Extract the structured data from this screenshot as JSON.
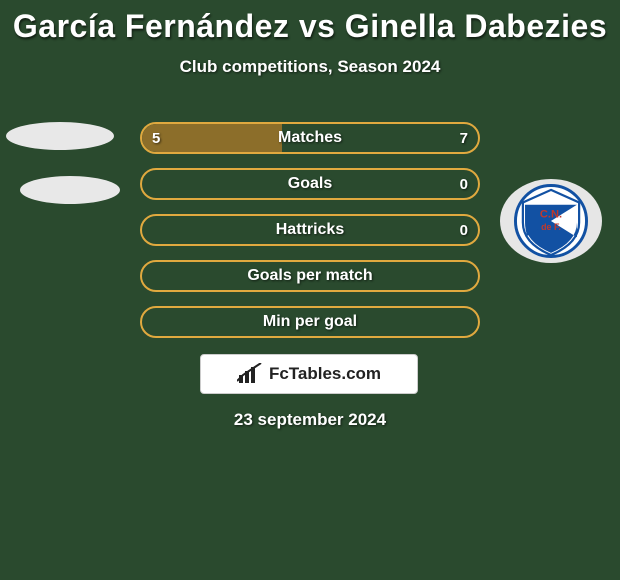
{
  "background_color": "#2a4a2e",
  "title": "García Fernández vs Ginella Dabezies",
  "title_fontsize": 32,
  "subtitle": "Club competitions, Season 2024",
  "subtitle_fontsize": 17,
  "bar_colors": {
    "border": "#e0a93f",
    "left_fill": "#8c6e2a",
    "track_fill": "transparent"
  },
  "rows": [
    {
      "label": "Matches",
      "left": "5",
      "right": "7",
      "left_pct": 41.7,
      "show_vals": true
    },
    {
      "label": "Goals",
      "left": "",
      "right": "0",
      "left_pct": 0,
      "show_vals": true
    },
    {
      "label": "Hattricks",
      "left": "",
      "right": "0",
      "left_pct": 0,
      "show_vals": true
    },
    {
      "label": "Goals per match",
      "left": "",
      "right": "",
      "left_pct": 0,
      "show_vals": false
    },
    {
      "label": "Min per goal",
      "left": "",
      "right": "",
      "left_pct": 0,
      "show_vals": false
    }
  ],
  "logo_text": "FcTables.com",
  "date_text": "23 september 2024",
  "oval_color": "#e8e8e8",
  "badge": {
    "outer_bg": "#e6e6e6",
    "shield_blue": "#1251a3",
    "shield_white": "#ffffff",
    "shield_red": "#c0392b",
    "text": "C.N. de F."
  }
}
